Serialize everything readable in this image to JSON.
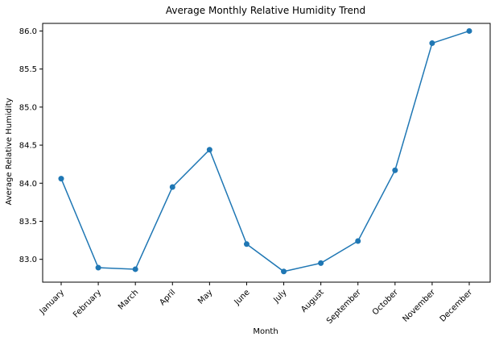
{
  "chart_data": {
    "type": "line",
    "title": "Average Monthly Relative Humidity Trend",
    "xlabel": "Month",
    "ylabel": "Average Relative Humidity",
    "categories": [
      "January",
      "February",
      "March",
      "April",
      "May",
      "June",
      "July",
      "August",
      "September",
      "October",
      "November",
      "December"
    ],
    "series": [
      {
        "values": [
          84.06,
          82.89,
          82.87,
          83.95,
          84.44,
          83.2,
          82.84,
          82.95,
          83.24,
          84.17,
          85.84,
          86.0
        ],
        "color": "#1f77b4",
        "marker": "circle"
      }
    ],
    "yticks": [
      "83.0",
      "83.5",
      "84.0",
      "84.5",
      "85.0",
      "85.5",
      "86.0"
    ],
    "ylim": [
      82.7,
      86.1
    ],
    "grid": false,
    "legend": "none"
  }
}
